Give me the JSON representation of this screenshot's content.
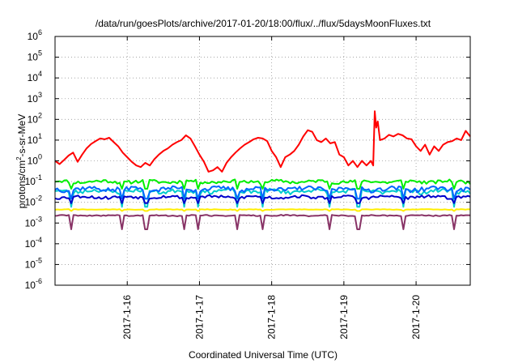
{
  "chart_data": {
    "type": "line",
    "title": "/data/run/goesPlots/archive/2017-01-20/18:00/flux/../flux/5daysMoonFluxes.txt",
    "xlabel": "Coordinated Universal Time (UTC)",
    "ylabel": {
      "pre": "protons/cm",
      "sup": "2",
      "post": "-s-sr-MeV"
    },
    "x_unit": "days",
    "xlim": [
      "2017-01-15 00:00",
      "2017-01-20 18:00"
    ],
    "x_ticks": [
      "2017-1-16",
      "2017-1-17",
      "2017-1-18",
      "2017-1-19",
      "2017-1-20"
    ],
    "y_scale": "log",
    "ylim": [
      1e-06,
      1000000.0
    ],
    "y_ticks": [
      {
        "value": 1e-06,
        "base": "10",
        "exp": "-6"
      },
      {
        "value": 1e-05,
        "base": "10",
        "exp": "-5"
      },
      {
        "value": 0.0001,
        "base": "10",
        "exp": "-4"
      },
      {
        "value": 0.001,
        "base": "10",
        "exp": "-3"
      },
      {
        "value": 0.01,
        "base": "10",
        "exp": "-2"
      },
      {
        "value": 0.1,
        "base": "10",
        "exp": "-1"
      },
      {
        "value": 1,
        "base": "10",
        "exp": "0"
      },
      {
        "value": 10,
        "base": "10",
        "exp": "1"
      },
      {
        "value": 100,
        "base": "10",
        "exp": "2"
      },
      {
        "value": 1000,
        "base": "10",
        "exp": "3"
      },
      {
        "value": 10000,
        "base": "10",
        "exp": "4"
      },
      {
        "value": 100000,
        "base": "10",
        "exp": "5"
      },
      {
        "value": 1000000,
        "base": "10",
        "exp": "6"
      }
    ],
    "grid": true,
    "series": [
      {
        "color": "#ff0000",
        "points": [
          [
            "2017-01-15 00:00",
            1.0
          ],
          [
            "2017-01-15 01:30",
            0.7
          ],
          [
            "2017-01-15 03:00",
            1.1
          ],
          [
            "2017-01-15 04:30",
            1.8
          ],
          [
            "2017-01-15 06:00",
            2.5
          ],
          [
            "2017-01-15 07:30",
            0.9
          ],
          [
            "2017-01-15 09:00",
            2.0
          ],
          [
            "2017-01-15 10:30",
            4.0
          ],
          [
            "2017-01-15 12:00",
            6.5
          ],
          [
            "2017-01-15 13:30",
            9.0
          ],
          [
            "2017-01-15 15:00",
            12.0
          ],
          [
            "2017-01-15 16:30",
            11.0
          ],
          [
            "2017-01-15 18:00",
            13.0
          ],
          [
            "2017-01-15 19:30",
            8.0
          ],
          [
            "2017-01-15 21:00",
            5.0
          ],
          [
            "2017-01-15 22:30",
            2.5
          ],
          [
            "2017-01-16 00:00",
            1.5
          ],
          [
            "2017-01-16 01:30",
            0.9
          ],
          [
            "2017-01-16 03:00",
            0.6
          ],
          [
            "2017-01-16 04:30",
            0.5
          ],
          [
            "2017-01-16 06:00",
            0.8
          ],
          [
            "2017-01-16 07:30",
            0.6
          ],
          [
            "2017-01-16 09:00",
            1.2
          ],
          [
            "2017-01-16 10:30",
            2.0
          ],
          [
            "2017-01-16 12:00",
            3.0
          ],
          [
            "2017-01-16 13:30",
            4.0
          ],
          [
            "2017-01-16 15:00",
            6.0
          ],
          [
            "2017-01-16 16:30",
            8.0
          ],
          [
            "2017-01-16 18:00",
            10.0
          ],
          [
            "2017-01-16 19:30",
            17.0
          ],
          [
            "2017-01-16 21:00",
            12.0
          ],
          [
            "2017-01-16 22:30",
            5.0
          ],
          [
            "2017-01-17 00:00",
            2.0
          ],
          [
            "2017-01-17 01:30",
            0.9
          ],
          [
            "2017-01-17 03:00",
            0.3
          ],
          [
            "2017-01-17 04:30",
            0.35
          ],
          [
            "2017-01-17 06:00",
            0.5
          ],
          [
            "2017-01-17 07:30",
            0.3
          ],
          [
            "2017-01-17 09:00",
            0.8
          ],
          [
            "2017-01-17 10:30",
            1.5
          ],
          [
            "2017-01-17 12:00",
            2.5
          ],
          [
            "2017-01-17 13:30",
            4.0
          ],
          [
            "2017-01-17 15:00",
            6.0
          ],
          [
            "2017-01-17 16:30",
            8.0
          ],
          [
            "2017-01-17 18:00",
            11.0
          ],
          [
            "2017-01-17 19:30",
            13.0
          ],
          [
            "2017-01-17 21:00",
            12.0
          ],
          [
            "2017-01-17 22:30",
            9.0
          ],
          [
            "2017-01-18 00:00",
            3.0
          ],
          [
            "2017-01-18 01:30",
            1.5
          ],
          [
            "2017-01-18 03:00",
            0.5
          ],
          [
            "2017-01-18 04:30",
            1.5
          ],
          [
            "2017-01-18 06:00",
            2.0
          ],
          [
            "2017-01-18 07:30",
            3.0
          ],
          [
            "2017-01-18 09:00",
            6.0
          ],
          [
            "2017-01-18 10:30",
            15.0
          ],
          [
            "2017-01-18 12:00",
            30.0
          ],
          [
            "2017-01-18 13:30",
            25.0
          ],
          [
            "2017-01-18 15:00",
            10.0
          ],
          [
            "2017-01-18 16:30",
            8.0
          ],
          [
            "2017-01-18 18:00",
            12.0
          ],
          [
            "2017-01-18 19:30",
            7.0
          ],
          [
            "2017-01-18 21:00",
            8.0
          ],
          [
            "2017-01-18 22:30",
            2.0
          ],
          [
            "2017-01-19 00:00",
            1.5
          ],
          [
            "2017-01-19 01:30",
            0.6
          ],
          [
            "2017-01-19 03:00",
            1.0
          ],
          [
            "2017-01-19 04:30",
            0.5
          ],
          [
            "2017-01-19 06:00",
            1.0
          ],
          [
            "2017-01-19 07:30",
            0.6
          ],
          [
            "2017-01-19 09:00",
            1.0
          ],
          [
            "2017-01-19 09:45",
            0.6
          ],
          [
            "2017-01-19 10:15",
            250.0
          ],
          [
            "2017-01-19 10:45",
            40.0
          ],
          [
            "2017-01-19 11:15",
            80.0
          ],
          [
            "2017-01-19 12:00",
            10.0
          ],
          [
            "2017-01-19 13:30",
            12.0
          ],
          [
            "2017-01-19 15:00",
            18.0
          ],
          [
            "2017-01-19 16:30",
            15.0
          ],
          [
            "2017-01-19 18:00",
            20.0
          ],
          [
            "2017-01-19 19:30",
            17.0
          ],
          [
            "2017-01-19 21:00",
            12.0
          ],
          [
            "2017-01-19 22:30",
            11.0
          ],
          [
            "2017-01-20 00:00",
            5.0
          ],
          [
            "2017-01-20 01:30",
            3.0
          ],
          [
            "2017-01-20 03:00",
            6.0
          ],
          [
            "2017-01-20 04:30",
            2.0
          ],
          [
            "2017-01-20 06:00",
            5.0
          ],
          [
            "2017-01-20 07:30",
            3.0
          ],
          [
            "2017-01-20 09:00",
            6.0
          ],
          [
            "2017-01-20 10:30",
            8.0
          ],
          [
            "2017-01-20 12:00",
            9.0
          ],
          [
            "2017-01-20 13:30",
            12.0
          ],
          [
            "2017-01-20 15:00",
            10.0
          ],
          [
            "2017-01-20 16:30",
            28.0
          ],
          [
            "2017-01-20 18:00",
            15.0
          ]
        ]
      },
      {
        "color": "#00ee00",
        "level": 0.1,
        "spread": 0.18,
        "dip": 0.045,
        "seed": 11
      },
      {
        "color": "#00cccc",
        "level": 0.035,
        "spread": 0.22,
        "dip": 0.006,
        "seed": 23
      },
      {
        "color": "#0066ff",
        "level": 0.045,
        "spread": 0.24,
        "dip": 0.015,
        "seed": 37
      },
      {
        "color": "#0000cc",
        "level": 0.018,
        "spread": 0.16,
        "dip": 0.009,
        "seed": 53
      },
      {
        "color": "#ffee00",
        "level": 0.0045,
        "spread": 0.03,
        "dip": 0.0038,
        "seed": 71
      },
      {
        "color": "#883366",
        "level": 0.0023,
        "spread": 0.06,
        "dip": 0.0005,
        "seed": 89
      }
    ]
  }
}
